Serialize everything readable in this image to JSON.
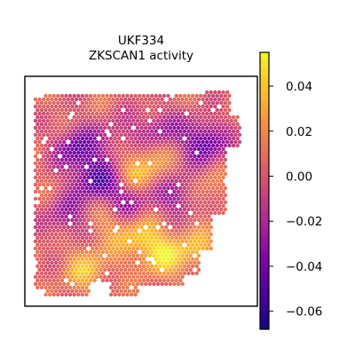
{
  "chart_data": {
    "type": "heatmap",
    "title": [
      "UKF334",
      "ZKSCAN1 activity"
    ],
    "xlabel": "",
    "ylabel": "",
    "colormap": "plasma",
    "colorbar": {
      "vmin": -0.068,
      "vmax": 0.055,
      "ticks": [
        0.04,
        0.02,
        0.0,
        -0.02,
        -0.04,
        -0.06
      ],
      "tick_labels": [
        "0.04",
        "0.02",
        "0.00",
        "−0.02",
        "−0.04",
        "−0.06"
      ]
    },
    "grid": false,
    "axes_ticks": false,
    "hotspots": [
      {
        "x": 0.5,
        "y": 0.72,
        "value": 0.03
      },
      {
        "x": 0.62,
        "y": 0.8,
        "value": 0.035
      },
      {
        "x": 0.36,
        "y": 0.64,
        "value": 0.02
      },
      {
        "x": 0.78,
        "y": 0.78,
        "value": 0.025
      },
      {
        "x": 0.25,
        "y": 0.87,
        "value": 0.03
      },
      {
        "x": 0.48,
        "y": 0.42,
        "value": 0.03
      },
      {
        "x": 0.58,
        "y": 0.33,
        "value": 0.02
      },
      {
        "x": 0.8,
        "y": 0.5,
        "value": 0.02
      },
      {
        "x": 0.3,
        "y": 0.45,
        "value": -0.05
      },
      {
        "x": 0.45,
        "y": 0.55,
        "value": -0.04
      },
      {
        "x": 0.7,
        "y": 0.52,
        "value": -0.04
      },
      {
        "x": 0.82,
        "y": 0.27,
        "value": -0.05
      },
      {
        "x": 0.2,
        "y": 0.3,
        "value": -0.045
      },
      {
        "x": 0.6,
        "y": 0.22,
        "value": -0.035
      },
      {
        "x": 0.15,
        "y": 0.62,
        "value": -0.03
      },
      {
        "x": 0.4,
        "y": 0.25,
        "value": -0.02
      }
    ]
  }
}
